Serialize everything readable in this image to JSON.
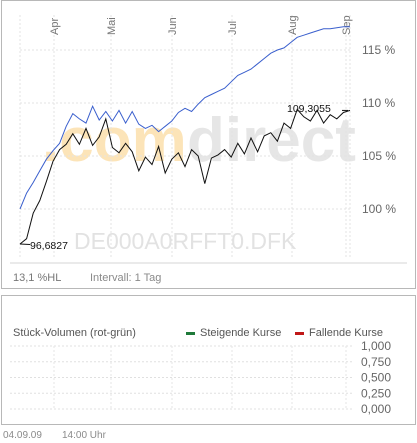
{
  "chart_data": [
    {
      "type": "line",
      "watermark": ".comdirect",
      "isin": "DE000A0RFFT0.DFK",
      "x_labels": [
        "Apr",
        "Mai",
        "Jun",
        "Jul",
        "Aug",
        "Sep"
      ],
      "y_ticks": [
        "100 %",
        "105 %",
        "110 %",
        "115 %"
      ],
      "ylim": [
        96,
        117.5
      ],
      "annotations": {
        "low": "96,6827",
        "high": "109,3055"
      },
      "hl_label": "13,1 %HL",
      "interval_label": "Intervall: 1 Tag",
      "colors": {
        "index": "#3a5fcd",
        "price": "#111111",
        "watermark_orange": "#fce4b8",
        "watermark_grey": "#e6e6e6"
      },
      "series": [
        {
          "x": [
            0,
            2,
            4,
            6,
            8,
            10,
            12,
            14,
            16,
            18,
            20,
            22,
            24,
            26,
            28,
            30,
            32,
            34,
            36,
            38,
            40,
            42,
            44,
            46,
            48,
            50,
            52,
            54,
            56,
            58,
            60,
            62,
            64,
            66,
            68,
            70,
            72,
            74,
            76,
            78,
            80,
            82,
            84,
            86,
            88,
            90,
            92,
            94,
            96,
            98,
            100
          ],
          "values": [
            100,
            101.5,
            102.5,
            103.6,
            104.7,
            105.5,
            106.2,
            107.8,
            109,
            108.5,
            108.1,
            109.7,
            108.4,
            109.2,
            108.3,
            109.3,
            108.1,
            109.2,
            108,
            107.6,
            107.9,
            107.3,
            107.8,
            108.3,
            109.1,
            109.5,
            109.2,
            109.9,
            110.5,
            110.8,
            111.1,
            111.4,
            112,
            112.6,
            112.9,
            113.2,
            113.7,
            114.2,
            114.7,
            115,
            115.2,
            115.7,
            116.2,
            116.4,
            116.6,
            116.8,
            117,
            117,
            117.1,
            117.2,
            117.2
          ]
        },
        {
          "x": [
            0,
            2,
            4,
            6,
            8,
            10,
            12,
            14,
            16,
            18,
            20,
            22,
            24,
            26,
            28,
            30,
            32,
            34,
            36,
            38,
            40,
            42,
            44,
            46,
            48,
            50,
            52,
            54,
            56,
            58,
            60,
            62,
            64,
            66,
            68,
            70,
            72,
            74,
            76,
            78,
            80,
            82,
            84,
            86,
            88,
            90,
            92,
            94,
            96,
            98,
            100
          ],
          "values": [
            96.7,
            97.2,
            99.6,
            100.8,
            102.6,
            104.5,
            105.6,
            106.1,
            107.1,
            106.1,
            107.6,
            106,
            106.8,
            108.5,
            105.8,
            105.3,
            106.2,
            105.4,
            103.6,
            104.9,
            104.2,
            105.9,
            103.4,
            104.7,
            105.3,
            104,
            105.6,
            105,
            102.4,
            104.8,
            105.1,
            105.6,
            104.9,
            106.2,
            105.2,
            106.7,
            105.4,
            106.9,
            107.2,
            106.4,
            108.1,
            107.6,
            109.4,
            108.7,
            108.3,
            109.3,
            108.1,
            108.9,
            108.5,
            109.1,
            109.3
          ]
        }
      ]
    },
    {
      "type": "bar",
      "title": "Stück-Volumen (rot-grün)",
      "legend": [
        {
          "name": "Steigende Kurse",
          "color": "#1f7a3a"
        },
        {
          "name": "Fallende Kurse",
          "color": "#c01818"
        }
      ],
      "y_ticks": [
        "1,000",
        "0,750",
        "0,500",
        "0,250",
        "0,000"
      ],
      "ylim": [
        0,
        1
      ],
      "values": []
    }
  ],
  "footer": {
    "date": "04.09.09",
    "time": "14:00 Uhr"
  }
}
